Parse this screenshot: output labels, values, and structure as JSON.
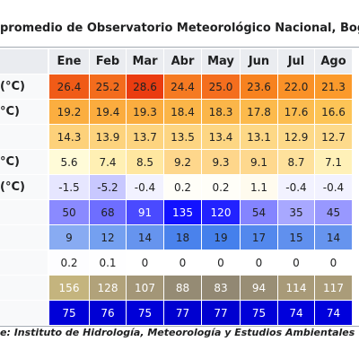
{
  "table": {
    "title": "promedio de Observatorio Meteorológico Nacional, Bogotá",
    "header": [
      "Ene",
      "Feb",
      "Mar",
      "Abr",
      "May",
      "Jun",
      "Jul",
      "Ago"
    ],
    "rows": [
      {
        "label": "(°C)",
        "cells": [
          "26.4",
          "25.2",
          "28.6",
          "24.4",
          "25.0",
          "23.6",
          "22.0",
          "21.3"
        ]
      },
      {
        "label": "°C)",
        "cells": [
          "19.2",
          "19.4",
          "19.3",
          "18.4",
          "18.3",
          "17.8",
          "17.6",
          "16.6"
        ]
      },
      {
        "cells": [
          "14.3",
          "13.9",
          "13.7",
          "13.5",
          "13.4",
          "13.1",
          "12.9",
          "12.7"
        ]
      },
      {
        "label": "°C)",
        "cells": [
          "5.6",
          "7.4",
          "8.5",
          "9.2",
          "9.3",
          "9.1",
          "8.7",
          "7.1"
        ]
      },
      {
        "label": "(°C)",
        "cells": [
          "-1.5",
          "-5.2",
          "-0.4",
          "0.2",
          "0.2",
          "1.1",
          "-0.4",
          "-0.4"
        ]
      },
      {
        "cells": [
          "50",
          "68",
          "91",
          "135",
          "120",
          "54",
          "35",
          "45"
        ]
      },
      {
        "cells": [
          "9",
          "12",
          "14",
          "18",
          "19",
          "17",
          "15",
          "14"
        ]
      },
      {
        "cells": [
          "0.2",
          "0.1",
          "0",
          "0",
          "0",
          "0",
          "0",
          "0"
        ]
      },
      {
        "cells": [
          "156",
          "128",
          "107",
          "88",
          "83",
          "94",
          "114",
          "117"
        ]
      },
      {
        "cells": [
          "75",
          "76",
          "75",
          "77",
          "77",
          "75",
          "74",
          "74"
        ]
      }
    ],
    "source": "e: Instituto de Hidrología, Meteorología y Estudios Ambientales (IDE"
  }
}
